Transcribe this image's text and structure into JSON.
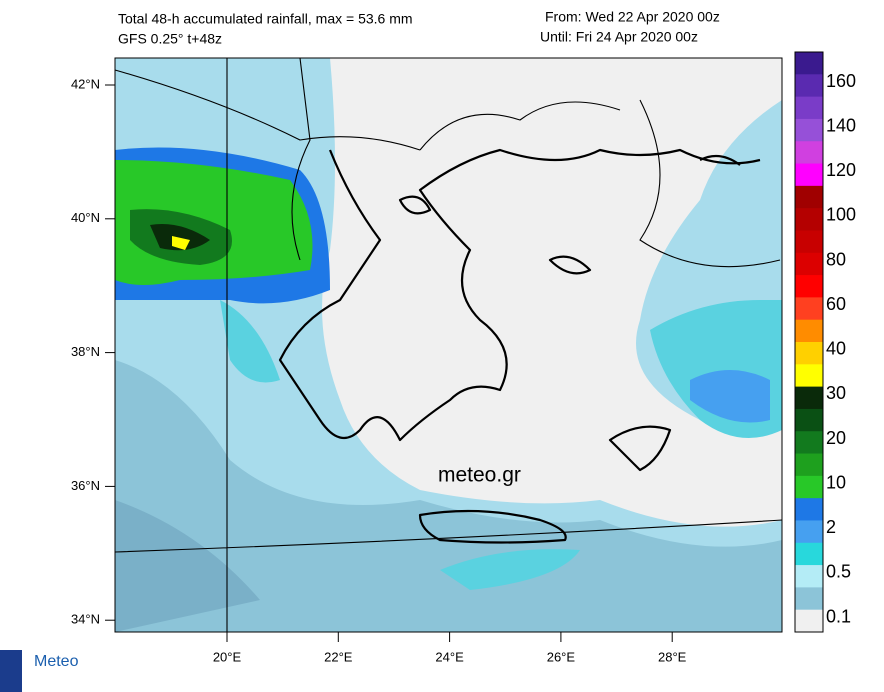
{
  "header": {
    "title": "Total 48-h accumulated rainfall, max = 53.6 mm",
    "model": "GFS 0.25° t+48z",
    "from": "From: Wed 22 Apr 2020 00z",
    "until": "Until: Fri 24 Apr 2020 00z"
  },
  "map": {
    "lat_labels": [
      "42°N",
      "40°N",
      "38°N",
      "36°N",
      "34°N"
    ],
    "lon_labels": [
      "20°E",
      "22°E",
      "24°E",
      "26°E",
      "28°E"
    ],
    "watermark": "meteo.gr"
  },
  "legend": {
    "labels": [
      "160",
      "140",
      "120",
      "100",
      "80",
      "60",
      "40",
      "30",
      "20",
      "10",
      "2",
      "0.5",
      "0.1"
    ],
    "colors": [
      "#3a1a8e",
      "#5a2ab0",
      "#7a3cc8",
      "#9650d8",
      "#d040e0",
      "#ff00ff",
      "#a00000",
      "#b40000",
      "#c80000",
      "#dc0000",
      "#ff0000",
      "#ff4020",
      "#ff8c00",
      "#ffd000",
      "#ffff00",
      "#0a2a0a",
      "#0a5014",
      "#127a1e",
      "#1ea01e",
      "#28c828",
      "#1e78e6",
      "#46a0f0",
      "#28d8dc",
      "#b4ecf6",
      "#8cc4d8",
      "#f0f0f0"
    ]
  },
  "logo": {
    "name": "Meteo"
  }
}
